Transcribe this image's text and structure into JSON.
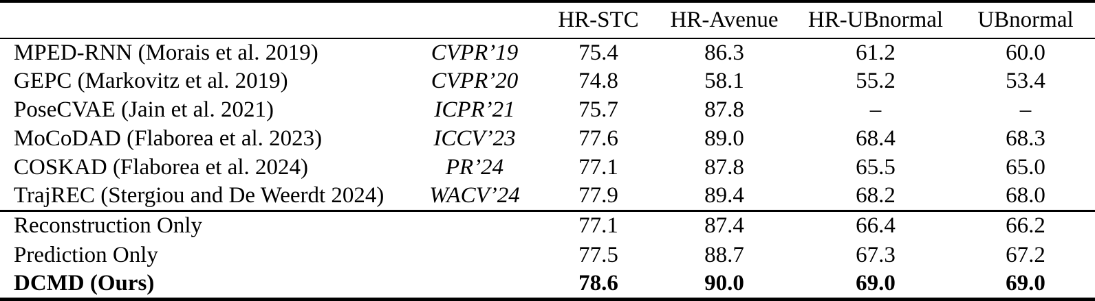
{
  "table": {
    "value_columns": [
      "HR-STC",
      "HR-Avenue",
      "HR-UBnormal",
      "UBnormal"
    ],
    "method_rows": [
      {
        "method": "MPED-RNN (Morais et al. 2019)",
        "venue": "CVPR’19",
        "values": [
          "75.4",
          "86.3",
          "61.2",
          "60.0"
        ],
        "bold": false
      },
      {
        "method": "GEPC (Markovitz et al. 2019)",
        "venue": "CVPR’20",
        "values": [
          "74.8",
          "58.1",
          "55.2",
          "53.4"
        ],
        "bold": false
      },
      {
        "method": "PoseCVAE (Jain et al. 2021)",
        "venue": "ICPR’21",
        "values": [
          "75.7",
          "87.8",
          "–",
          "–"
        ],
        "bold": false
      },
      {
        "method": "MoCoDAD (Flaborea et al. 2023)",
        "venue": "ICCV’23",
        "values": [
          "77.6",
          "89.0",
          "68.4",
          "68.3"
        ],
        "bold": false
      },
      {
        "method": "COSKAD (Flaborea et al. 2024)",
        "venue": "PR’24",
        "values": [
          "77.1",
          "87.8",
          "65.5",
          "65.0"
        ],
        "bold": false
      },
      {
        "method": "TrajREC (Stergiou and De Weerdt 2024)",
        "venue": "WACV’24",
        "values": [
          "77.9",
          "89.4",
          "68.2",
          "68.0"
        ],
        "bold": false
      }
    ],
    "ablation_rows": [
      {
        "method": "Reconstruction Only",
        "venue": "",
        "values": [
          "77.1",
          "87.4",
          "66.4",
          "66.2"
        ],
        "bold": false
      },
      {
        "method": "Prediction Only",
        "venue": "",
        "values": [
          "77.5",
          "88.7",
          "67.3",
          "67.2"
        ],
        "bold": false
      },
      {
        "method": "DCMD (Ours)",
        "venue": "",
        "values": [
          "78.6",
          "90.0",
          "69.0",
          "69.0"
        ],
        "bold": true
      }
    ],
    "colors": {
      "text": "#000000",
      "background": "#ffffff",
      "rule": "#000000"
    }
  }
}
